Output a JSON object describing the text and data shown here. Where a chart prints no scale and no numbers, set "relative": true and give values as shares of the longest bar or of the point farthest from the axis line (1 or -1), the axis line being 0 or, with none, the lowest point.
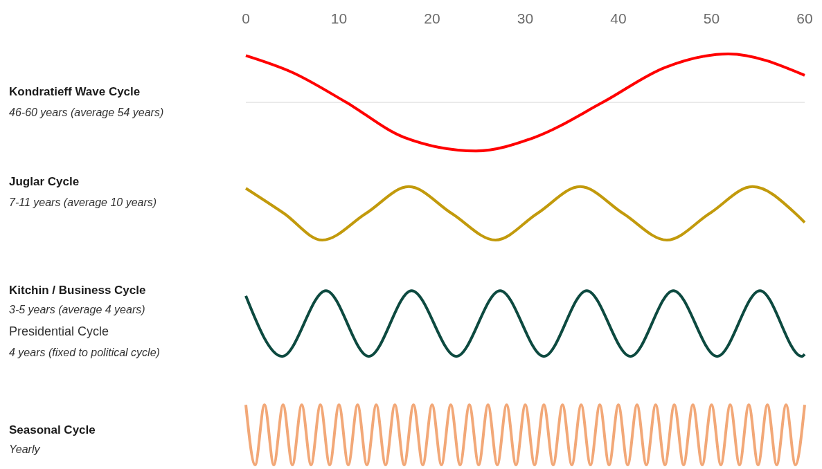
{
  "chart_data": {
    "type": "line",
    "relative": true,
    "xlim": [
      0,
      60
    ],
    "xticks": [
      0,
      10,
      20,
      30,
      40,
      50,
      60
    ],
    "tick_labels": "x",
    "marker": "none",
    "line_style": "solid",
    "annotations": [
      "Kondratieff Wave Cycle",
      "46-60 years (average 54 years)",
      "Juglar Cycle",
      "7-11 years (average 10 years)",
      "Kitchin / Business Cycle",
      "3-5 years (average 4 years)",
      "Presidential Cycle",
      "4 years (fixed to political cycle)",
      "Seasonal Cycle",
      "Yearly"
    ],
    "ref_lines": [
      {
        "axis": "y",
        "value": 0.882,
        "color": "#e3e3e3"
      }
    ],
    "series": [
      {
        "color": "#ff0000",
        "x": [
          0,
          5,
          10.8,
          17,
          24.7,
          31,
          38.3,
          45,
          51.8,
          60
        ],
        "values": [
          0.996,
          0.955,
          0.882,
          0.797,
          0.764,
          0.797,
          0.882,
          0.967,
          1,
          0.948
        ]
      },
      {
        "color": "#c29a0c",
        "x": [
          0,
          4.1,
          8.2,
          12.9,
          17.5,
          22.1,
          26.8,
          31.3,
          35.9,
          40.5,
          45.2,
          49.8,
          54.4,
          59,
          60
        ],
        "values": [
          0.673,
          0.612,
          0.547,
          0.612,
          0.677,
          0.612,
          0.547,
          0.612,
          0.677,
          0.612,
          0.547,
          0.612,
          0.677,
          0.612,
          0.59
        ]
      },
      {
        "color": "#0d4a40",
        "x": [
          0,
          3.9,
          8.6,
          13.2,
          17.8,
          22.6,
          27.3,
          32,
          36.6,
          41.3,
          45.9,
          50.6,
          55.2,
          59.7,
          60
        ],
        "values": [
          0.411,
          0.264,
          0.424,
          0.264,
          0.424,
          0.264,
          0.424,
          0.264,
          0.424,
          0.264,
          0.424,
          0.264,
          0.424,
          0.264,
          0.269
        ]
      },
      {
        "color": "#f2a878",
        "x": [
          0,
          1,
          2,
          3,
          4,
          5,
          6,
          7,
          8,
          9,
          10,
          11,
          12,
          13,
          14,
          15,
          16,
          17,
          18,
          19,
          20,
          21,
          22,
          23,
          24,
          25,
          26,
          27,
          28,
          29,
          30,
          31,
          32,
          33,
          34,
          35,
          36,
          37,
          38,
          39,
          40,
          41,
          42,
          43,
          44,
          45,
          46,
          47,
          48,
          49,
          50,
          51,
          52,
          53,
          54,
          55,
          56,
          57,
          58,
          59,
          60
        ],
        "values": [
          0.146,
          0,
          0.146,
          0,
          0.146,
          0,
          0.146,
          0,
          0.146,
          0,
          0.146,
          0,
          0.146,
          0,
          0.146,
          0,
          0.146,
          0,
          0.146,
          0,
          0.146,
          0,
          0.146,
          0,
          0.146,
          0,
          0.146,
          0,
          0.146,
          0,
          0.146,
          0,
          0.146,
          0,
          0.146,
          0,
          0.146,
          0,
          0.146,
          0,
          0.146,
          0,
          0.146,
          0,
          0.146,
          0,
          0.146,
          0,
          0.146,
          0,
          0.146,
          0,
          0.146,
          0,
          0.146,
          0,
          0.146,
          0,
          0.146,
          0,
          0.146
        ]
      }
    ]
  }
}
